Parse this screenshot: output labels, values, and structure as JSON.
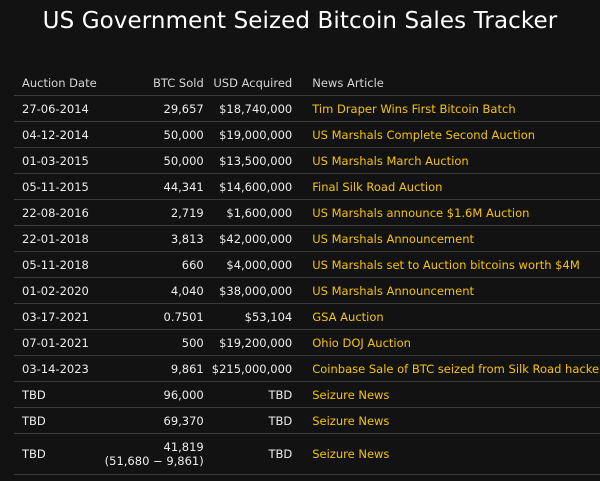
{
  "page": {
    "title": "US Government Seized Bitcoin Sales Tracker"
  },
  "table": {
    "headers": {
      "date": "Auction Date",
      "btc": "BTC Sold",
      "usd": "USD Acquired",
      "news": "News Article"
    },
    "rows": [
      {
        "date": "27-06-2014",
        "btc": "29,657",
        "btc_sub": "",
        "usd": "$18,740,000",
        "news": "Tim Draper Wins First Bitcoin Batch"
      },
      {
        "date": "04-12-2014",
        "btc": "50,000",
        "btc_sub": "",
        "usd": "$19,000,000",
        "news": "US Marshals Complete Second Auction"
      },
      {
        "date": "01-03-2015",
        "btc": "50,000",
        "btc_sub": "",
        "usd": "$13,500,000",
        "news": "US Marshals March Auction"
      },
      {
        "date": "05-11-2015",
        "btc": "44,341",
        "btc_sub": "",
        "usd": "$14,600,000",
        "news": "Final Silk Road Auction"
      },
      {
        "date": "22-08-2016",
        "btc": "2,719",
        "btc_sub": "",
        "usd": "$1,600,000",
        "news": "US Marshals announce $1.6M Auction"
      },
      {
        "date": "22-01-2018",
        "btc": "3,813",
        "btc_sub": "",
        "usd": "$42,000,000",
        "news": "US Marshals Announcement"
      },
      {
        "date": "05-11-2018",
        "btc": "660",
        "btc_sub": "",
        "usd": "$4,000,000",
        "news": "US Marshals set to Auction bitcoins worth $4M"
      },
      {
        "date": "01-02-2020",
        "btc": "4,040",
        "btc_sub": "",
        "usd": "$38,000,000",
        "news": "US Marshals Announcement"
      },
      {
        "date": "03-17-2021",
        "btc": "0.7501",
        "btc_sub": "",
        "usd": "$53,104",
        "news": "GSA Auction"
      },
      {
        "date": "07-01-2021",
        "btc": "500",
        "btc_sub": "",
        "usd": "$19,200,000",
        "news": "Ohio DOJ Auction"
      },
      {
        "date": "03-14-2023",
        "btc": "9,861",
        "btc_sub": "",
        "usd": "$215,000,000",
        "news": "Coinbase Sale of BTC seized from Silk Road hacker"
      },
      {
        "date": "TBD",
        "btc": "96,000",
        "btc_sub": "",
        "usd": "TBD",
        "news": "Seizure News"
      },
      {
        "date": "TBD",
        "btc": "69,370",
        "btc_sub": "",
        "usd": "TBD",
        "news": "Seizure News"
      },
      {
        "date": "TBD",
        "btc": "41,819",
        "btc_sub": "(51,680 − 9,861)",
        "usd": "TBD",
        "news": "Seizure News"
      }
    ]
  },
  "colors": {
    "background": "#121212",
    "link": "#f5c400",
    "text": "#ededed"
  }
}
